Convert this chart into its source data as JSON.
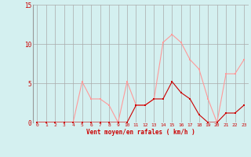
{
  "x": [
    0,
    1,
    2,
    3,
    4,
    5,
    6,
    7,
    8,
    9,
    10,
    11,
    12,
    13,
    14,
    15,
    16,
    17,
    18,
    19,
    20,
    21,
    22,
    23
  ],
  "rafales": [
    0,
    0,
    0,
    0,
    0,
    5.2,
    3.0,
    3.0,
    2.2,
    0,
    5.2,
    2.2,
    2.2,
    3.0,
    10.2,
    11.2,
    10.2,
    8.0,
    6.8,
    3.0,
    0,
    6.2,
    6.2,
    8.0
  ],
  "moyen": [
    0,
    0,
    0,
    0,
    0,
    0,
    0,
    0,
    0,
    0,
    0,
    2.2,
    2.2,
    3.0,
    3.0,
    5.2,
    3.8,
    3.0,
    1.0,
    0,
    0,
    1.2,
    1.2,
    2.2
  ],
  "rafales_color": "#ff9999",
  "moyen_color": "#cc0000",
  "bg_color": "#d4f0f0",
  "grid_color": "#aaaaaa",
  "ylabel_values": [
    0,
    5,
    10,
    15
  ],
  "ylim": [
    0,
    15
  ],
  "xlim": [
    -0.5,
    23.5
  ],
  "xlabel": "Vent moyen/en rafales ( km/h )",
  "xlabel_color": "#cc0000",
  "tick_color": "#cc0000"
}
